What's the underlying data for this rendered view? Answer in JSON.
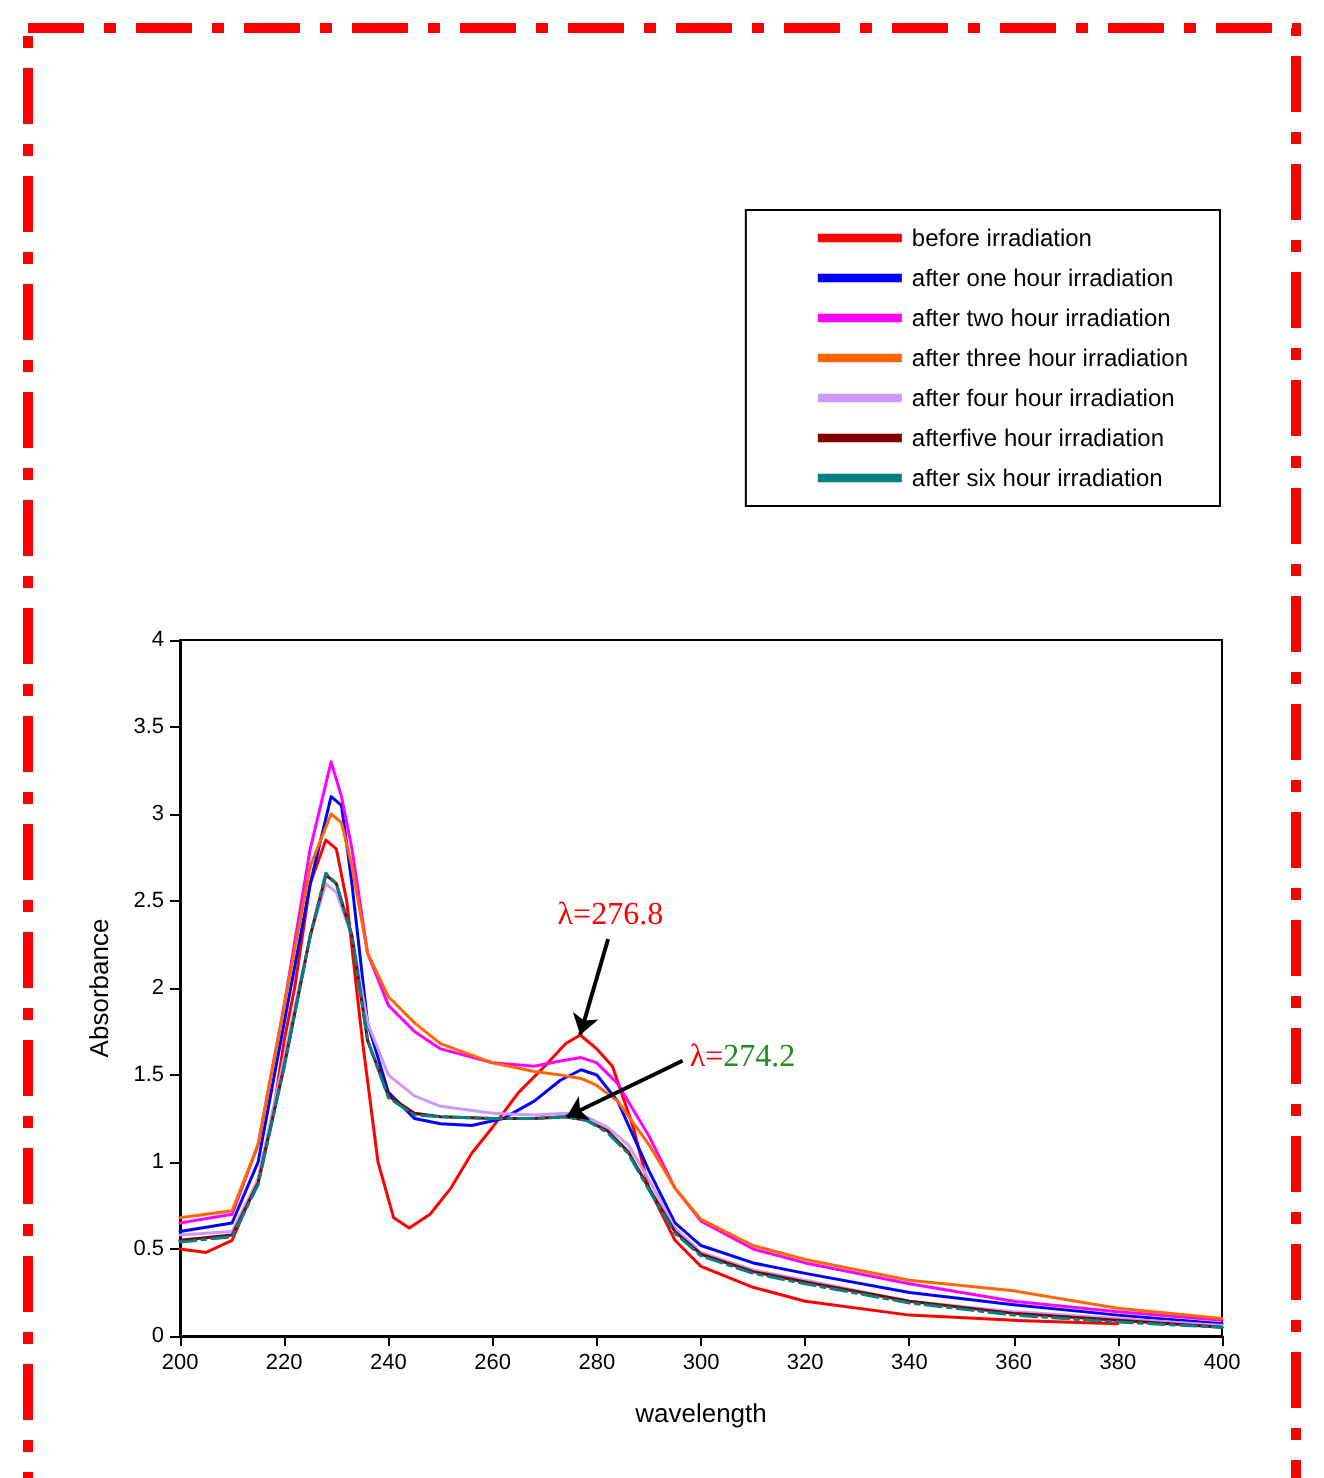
{
  "chart_data": {
    "type": "line",
    "xlabel": "wavelength",
    "ylabel": "Absorbance",
    "xlim": [
      200,
      400
    ],
    "xticks": [
      200,
      220,
      240,
      260,
      280,
      300,
      320,
      340,
      360,
      380,
      400
    ],
    "ylim": [
      0,
      4
    ],
    "yticks": [
      0,
      0.5,
      1,
      1.5,
      2,
      2.5,
      3,
      3.5,
      4
    ],
    "grid": false,
    "legend": "top right",
    "marker": "none",
    "annotations": [
      {
        "text": "λ=276.8",
        "x": 276.8,
        "y": 1.73
      },
      {
        "text": "λ=274.2",
        "x": 274.2,
        "y": 1.26
      }
    ],
    "series": [
      {
        "name": "before irradiation",
        "color": "#ff0000",
        "x": [
          200,
          205,
          210,
          215,
          218,
          220,
          222,
          225,
          228,
          230,
          232,
          235,
          238,
          241,
          244,
          248,
          252,
          256,
          260,
          265,
          270,
          274,
          276.8,
          280,
          283,
          287,
          290,
          295,
          300,
          310,
          320,
          340,
          360,
          380
        ],
        "values": [
          0.5,
          0.48,
          0.55,
          0.9,
          1.3,
          1.7,
          2.0,
          2.6,
          2.85,
          2.8,
          2.5,
          1.7,
          1.0,
          0.68,
          0.62,
          0.7,
          0.85,
          1.05,
          1.2,
          1.4,
          1.55,
          1.68,
          1.73,
          1.65,
          1.55,
          1.2,
          0.85,
          0.55,
          0.4,
          0.28,
          0.2,
          0.12,
          0.09,
          0.07
        ]
      },
      {
        "name": "after one hour irradiation",
        "color": "#0000ff",
        "x": [
          200,
          210,
          215,
          220,
          225,
          229,
          231,
          233,
          236,
          240,
          245,
          250,
          256,
          262,
          268,
          273,
          277,
          280,
          284,
          290,
          295,
          300,
          310,
          320,
          340,
          360,
          380,
          400
        ],
        "values": [
          0.6,
          0.65,
          1.0,
          1.8,
          2.6,
          3.1,
          3.05,
          2.6,
          1.8,
          1.4,
          1.25,
          1.22,
          1.21,
          1.25,
          1.35,
          1.47,
          1.53,
          1.5,
          1.35,
          0.95,
          0.65,
          0.52,
          0.42,
          0.36,
          0.25,
          0.18,
          0.12,
          0.07
        ]
      },
      {
        "name": "after two hour irradiation",
        "color": "#ff00ff",
        "x": [
          200,
          210,
          215,
          220,
          225,
          229,
          231,
          233,
          236,
          240,
          245,
          250,
          260,
          268,
          273,
          277,
          280,
          284,
          290,
          295,
          300,
          310,
          320,
          340,
          360,
          380,
          400
        ],
        "values": [
          0.65,
          0.7,
          1.1,
          1.9,
          2.8,
          3.3,
          3.1,
          2.8,
          2.2,
          1.9,
          1.75,
          1.65,
          1.57,
          1.55,
          1.58,
          1.6,
          1.57,
          1.45,
          1.15,
          0.85,
          0.66,
          0.5,
          0.42,
          0.3,
          0.2,
          0.14,
          0.09
        ]
      },
      {
        "name": "after three hour irradiation",
        "color": "#ff6600",
        "x": [
          200,
          210,
          215,
          220,
          225,
          229,
          231,
          233,
          236,
          240,
          245,
          250,
          260,
          268,
          273,
          277,
          280,
          284,
          290,
          295,
          300,
          310,
          320,
          340,
          360,
          380,
          400
        ],
        "values": [
          0.68,
          0.72,
          1.1,
          1.9,
          2.7,
          3.0,
          2.95,
          2.7,
          2.2,
          1.95,
          1.8,
          1.68,
          1.57,
          1.52,
          1.5,
          1.48,
          1.44,
          1.35,
          1.1,
          0.85,
          0.67,
          0.52,
          0.44,
          0.32,
          0.26,
          0.16,
          0.1
        ]
      },
      {
        "name": "after four hour irradiation",
        "color": "#cc99ff",
        "x": [
          200,
          210,
          215,
          220,
          225,
          228,
          230,
          233,
          236,
          240,
          245,
          250,
          260,
          268,
          274,
          278,
          282,
          286,
          290,
          295,
          300,
          310,
          320,
          340,
          360,
          380,
          400
        ],
        "values": [
          0.58,
          0.6,
          0.9,
          1.6,
          2.3,
          2.6,
          2.55,
          2.3,
          1.8,
          1.5,
          1.38,
          1.32,
          1.28,
          1.27,
          1.28,
          1.26,
          1.2,
          1.1,
          0.9,
          0.62,
          0.48,
          0.38,
          0.32,
          0.2,
          0.14,
          0.1,
          0.06
        ]
      },
      {
        "name": "afterfive hour irradiation",
        "color": "#800000",
        "x": [
          200,
          210,
          215,
          220,
          225,
          228,
          230,
          233,
          236,
          240,
          245,
          250,
          260,
          268,
          274,
          278,
          282,
          286,
          290,
          295,
          300,
          310,
          320,
          340,
          360,
          380,
          400
        ],
        "values": [
          0.55,
          0.58,
          0.88,
          1.55,
          2.3,
          2.65,
          2.6,
          2.3,
          1.7,
          1.38,
          1.28,
          1.26,
          1.25,
          1.25,
          1.26,
          1.24,
          1.18,
          1.06,
          0.85,
          0.6,
          0.47,
          0.37,
          0.31,
          0.2,
          0.13,
          0.09,
          0.05
        ]
      },
      {
        "name": "after six hour irradiation",
        "color": "#008080",
        "line_style": "dashdot",
        "x": [
          200,
          210,
          215,
          220,
          225,
          228,
          230,
          233,
          236,
          240,
          245,
          250,
          260,
          268,
          274,
          278,
          282,
          286,
          290,
          295,
          300,
          310,
          320,
          340,
          360,
          380,
          400
        ],
        "values": [
          0.54,
          0.57,
          0.87,
          1.55,
          2.3,
          2.66,
          2.6,
          2.3,
          1.7,
          1.37,
          1.27,
          1.26,
          1.25,
          1.25,
          1.26,
          1.24,
          1.17,
          1.05,
          0.84,
          0.59,
          0.46,
          0.36,
          0.3,
          0.19,
          0.12,
          0.08,
          0.05
        ]
      }
    ]
  }
}
